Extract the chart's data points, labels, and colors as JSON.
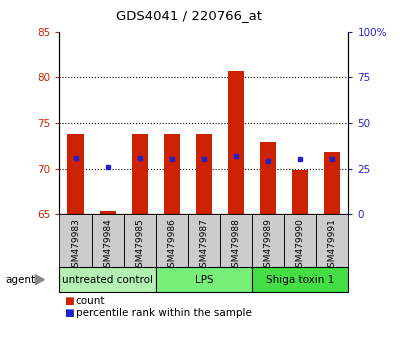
{
  "title": "GDS4041 / 220766_at",
  "samples": [
    "GSM479983",
    "GSM479984",
    "GSM479985",
    "GSM479986",
    "GSM479987",
    "GSM479988",
    "GSM479989",
    "GSM479990",
    "GSM479991"
  ],
  "counts": [
    73.8,
    65.3,
    73.8,
    73.8,
    73.8,
    80.7,
    72.9,
    69.8,
    71.8
  ],
  "count_base": 65.0,
  "percentile_ranks": [
    71.2,
    70.2,
    71.2,
    71.0,
    71.0,
    71.4,
    70.8,
    71.0,
    71.0
  ],
  "ylim_left": [
    65,
    85
  ],
  "ylim_right": [
    0,
    100
  ],
  "yticks_left": [
    65,
    70,
    75,
    80,
    85
  ],
  "yticks_right": [
    0,
    25,
    50,
    75,
    100
  ],
  "groups": [
    {
      "label": "untreated control",
      "start": 0,
      "end": 3,
      "color": "#b3f0b3"
    },
    {
      "label": "LPS",
      "start": 3,
      "end": 6,
      "color": "#77ee77"
    },
    {
      "label": "Shiga toxin 1",
      "start": 6,
      "end": 9,
      "color": "#44dd44"
    }
  ],
  "bar_color": "#cc2200",
  "percentile_color": "#2222cc",
  "bar_width": 0.5,
  "grid_color": "#000000",
  "tick_label_color_left": "#cc2200",
  "tick_label_color_right": "#2222cc",
  "agent_label": "agent",
  "legend_count_label": "count",
  "legend_percentile_label": "percentile rank within the sample",
  "background_plot": "#ffffff",
  "background_xticklabels": "#cccccc",
  "sample_label_fontsize": 6.5,
  "group_label_fontsize": 7.5
}
